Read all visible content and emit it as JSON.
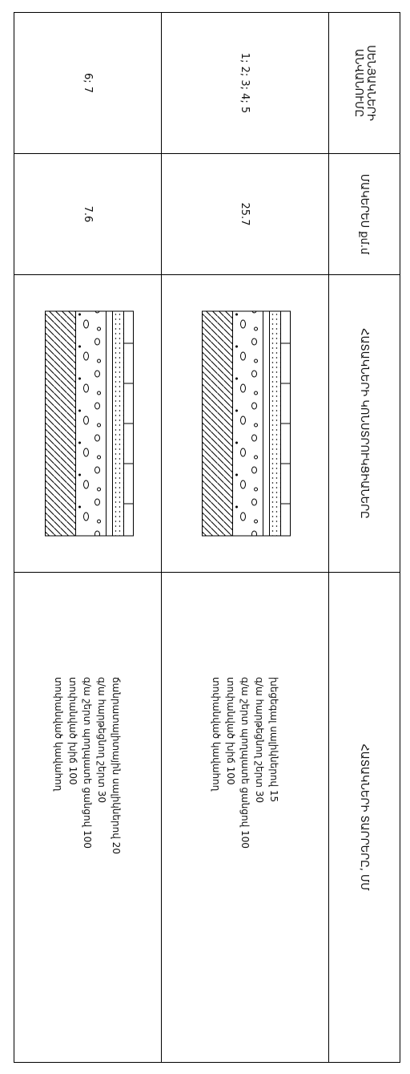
{
  "header": {
    "columns": [
      "ՍԵՆՅԱԿՆԵՐԻ ԱՆՎԱՆՈՒՄԸ",
      "ՄԱԿԵՐԵՍ քմ.մ",
      "ՀԱՏԱԿՆԵՐԻ ԿՈՆՍՏՐՈՒԿՑԻԱՆԵՐԸ",
      "ՀԱՏԱԿՆԵՐԻ ՏԱՐՐԵՐԸ, ՄՄ"
    ]
  },
  "table": {
    "rows": [
      {
        "rooms": "1; 2; 3; 4; 5",
        "area": "25.7",
        "layers": [
          "խեցեգալ սալիկներով 15",
          "գ/ա հարթեցնող շերտ 30",
          "գ/ա շերտ պողպատե ցանցով 100",
          "տոփանված խիճ 100",
          "տոփանված կավահող"
        ]
      },
      {
        "rooms": "6; 7",
        "area": "7.6",
        "layers": [
          "ճանրատալիտային սալիկներով 20",
          "գ/ա հարթեցնող շերտ 30",
          "գ/ա շերտ պողպատե ցանցով 100",
          "տոփանված խիճ 100",
          "տոփանված կավահող"
        ]
      }
    ]
  }
}
